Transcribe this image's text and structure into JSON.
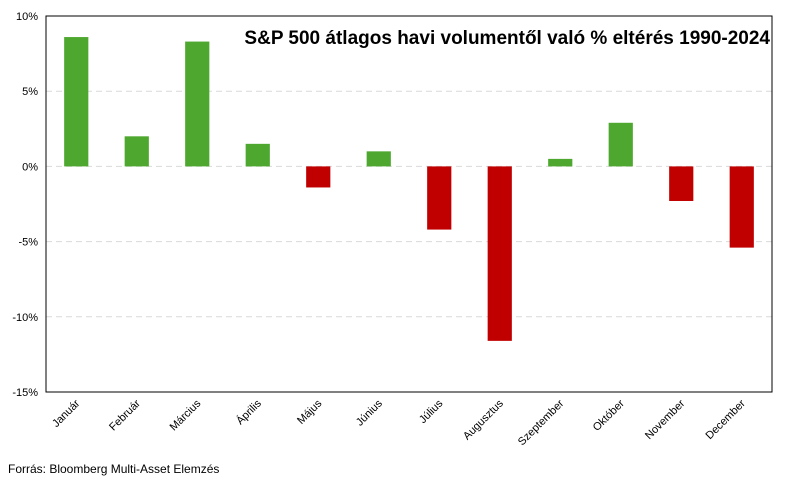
{
  "chart_data": {
    "type": "bar",
    "title": "S&P 500 átlagos havi volumentől való % eltérés  1990-2024",
    "xlabel": "",
    "ylabel": "",
    "ylim": [
      -15,
      10
    ],
    "y_ticks": [
      10,
      5,
      0,
      -5,
      -10,
      -15
    ],
    "y_tick_labels": [
      "10%",
      "5%",
      "0%",
      "-5%",
      "-10%",
      "-15%"
    ],
    "grid": "horizontal dashed",
    "categories": [
      "Január",
      "Február",
      "Március",
      "Április",
      "Május",
      "Június",
      "Július",
      "Augusztus",
      "Szeptember",
      "Október",
      "November",
      "December"
    ],
    "values": [
      8.6,
      2.0,
      8.3,
      1.5,
      -1.4,
      1.0,
      -4.2,
      -11.6,
      0.5,
      2.9,
      -2.3,
      -5.4
    ],
    "colors": {
      "positive": "#4ea72e",
      "negative": "#c00000",
      "grid": "#d9d9d9",
      "border": "#000000"
    }
  },
  "source": "Forrás: Bloomberg Multi-Asset Elemzés"
}
